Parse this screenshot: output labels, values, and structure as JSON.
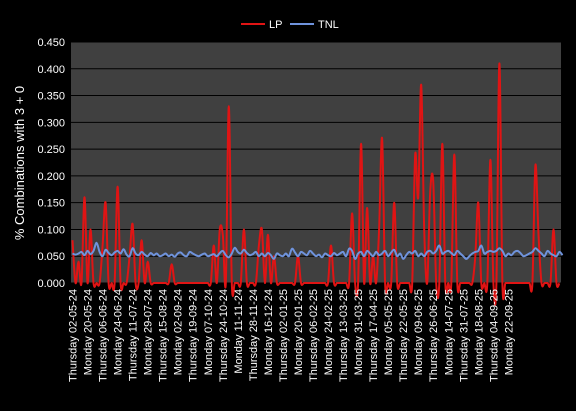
{
  "chart_data": {
    "type": "line",
    "ylabel": "% Combinations with 3 + 0",
    "xlabel": "",
    "ylim": [
      0,
      0.45
    ],
    "yticks": [
      "0.000",
      "0.050",
      "0.100",
      "0.150",
      "0.200",
      "0.250",
      "0.300",
      "0.350",
      "0.400",
      "0.450"
    ],
    "grid": true,
    "legend_position": "top-center",
    "colors": {
      "background": "#000000",
      "plot_background": "#404040",
      "grid": "#000000",
      "text": "#ffffff"
    },
    "x_tick_labels": [
      "Thursday 02-05-24",
      "Monday 20-05-24",
      "Thursday 06-06-24",
      "Monday 24-06-24",
      "Thursday 11-07-24",
      "Monday 29-07-24",
      "Thursday 15-08-24",
      "Monday 02-09-24",
      "Thursday 19-09-24",
      "Monday 07-10-24",
      "Thursday 24-10-24",
      "Monday 11-11-24",
      "Thursday 28-11-24",
      "Monday 16-12-24",
      "Thursday 02-01-25",
      "Monday 20-01-25",
      "Thursday 06-02-25",
      "Monday 24-02-25",
      "Thursday 13-03-25",
      "Monday 31-03-25",
      "Thursday 17-04-25",
      "Monday 05-05-25",
      "Thursday 22-05-25",
      "Monday 09-06-25",
      "Thursday 26-06-25",
      "Monday 14-07-25",
      "Thursday 31-07-25",
      "Monday 18-08-25",
      "Thursday 04-09-25",
      "Monday 22-09-25"
    ],
    "draws_per_tick": 5,
    "series": [
      {
        "name": "LP",
        "color": "#e01414",
        "values": [
          0.08,
          0,
          0.04,
          0,
          0.16,
          0,
          0.1,
          0,
          0,
          0,
          0.07,
          0.15,
          0,
          0,
          0,
          0.18,
          0,
          0,
          0,
          0.05,
          0.11,
          0,
          0,
          0.08,
          0,
          0.04,
          0,
          0,
          0,
          0,
          0,
          0,
          0,
          0.035,
          0,
          0,
          0,
          0,
          0,
          0,
          0,
          0,
          0,
          0,
          0,
          0,
          0,
          0.07,
          0,
          0.1,
          0.09,
          0,
          0.33,
          0,
          0,
          0,
          0,
          0.1,
          0,
          0,
          0,
          0,
          0.07,
          0.1,
          0,
          0.09,
          0,
          0.05,
          0,
          0,
          0,
          0,
          0,
          0,
          0,
          0.05,
          0,
          0,
          0,
          0,
          0,
          0,
          0,
          0,
          0,
          0,
          0.07,
          0,
          0,
          0,
          0,
          0,
          0,
          0.13,
          0,
          0,
          0.26,
          0,
          0.14,
          0,
          0.05,
          0,
          0.1,
          0.27,
          0,
          0,
          0,
          0.15,
          0,
          0,
          0,
          0,
          0,
          0,
          0.24,
          0.16,
          0.37,
          0.1,
          0,
          0.17,
          0.19,
          0,
          0,
          0.26,
          0,
          0,
          0,
          0.24,
          0,
          0,
          0,
          0,
          0,
          0,
          0.05,
          0.15,
          0,
          0,
          0,
          0.23,
          0,
          0,
          0.41,
          0,
          0,
          0,
          0,
          0,
          0,
          0,
          0,
          0,
          0,
          0,
          0.22,
          0.09,
          0,
          0,
          0,
          0,
          0.1,
          0,
          0
        ]
      },
      {
        "name": "TNL",
        "color": "#6f93dc",
        "values": [
          0.055,
          0.053,
          0.055,
          0.058,
          0.052,
          0.06,
          0.054,
          0.06,
          0.075,
          0.058,
          0.05,
          0.062,
          0.056,
          0.052,
          0.057,
          0.06,
          0.055,
          0.063,
          0.053,
          0.05,
          0.065,
          0.055,
          0.052,
          0.058,
          0.053,
          0.05,
          0.056,
          0.052,
          0.055,
          0.05,
          0.052,
          0.055,
          0.05,
          0.053,
          0.049,
          0.055,
          0.057,
          0.052,
          0.05,
          0.058,
          0.055,
          0.052,
          0.05,
          0.053,
          0.055,
          0.05,
          0.052,
          0.054,
          0.05,
          0.056,
          0.06,
          0.052,
          0.048,
          0.055,
          0.066,
          0.058,
          0.055,
          0.062,
          0.056,
          0.052,
          0.054,
          0.058,
          0.05,
          0.055,
          0.05,
          0.056,
          0.052,
          0.045,
          0.055,
          0.052,
          0.05,
          0.055,
          0.05,
          0.064,
          0.057,
          0.05,
          0.058,
          0.055,
          0.052,
          0.06,
          0.055,
          0.05,
          0.053,
          0.048,
          0.055,
          0.052,
          0.05,
          0.056,
          0.052,
          0.055,
          0.058,
          0.05,
          0.064,
          0.06,
          0.045,
          0.055,
          0.058,
          0.05,
          0.06,
          0.055,
          0.05,
          0.058,
          0.052,
          0.055,
          0.06,
          0.05,
          0.057,
          0.062,
          0.05,
          0.055,
          0.045,
          0.052,
          0.058,
          0.055,
          0.06,
          0.05,
          0.055,
          0.05,
          0.058,
          0.06,
          0.055,
          0.06,
          0.07,
          0.055,
          0.058,
          0.06,
          0.056,
          0.052,
          0.06,
          0.055,
          0.05,
          0.045,
          0.05,
          0.055,
          0.058,
          0.06,
          0.07,
          0.055,
          0.058,
          0.06,
          0.058,
          0.06,
          0.065,
          0.06,
          0.05,
          0.055,
          0.052,
          0.058,
          0.06,
          0.056,
          0.05,
          0.052,
          0.055,
          0.058,
          0.065,
          0.06,
          0.055,
          0.05,
          0.06,
          0.055,
          0.052,
          0.05,
          0.058,
          0.052
        ]
      }
    ]
  }
}
